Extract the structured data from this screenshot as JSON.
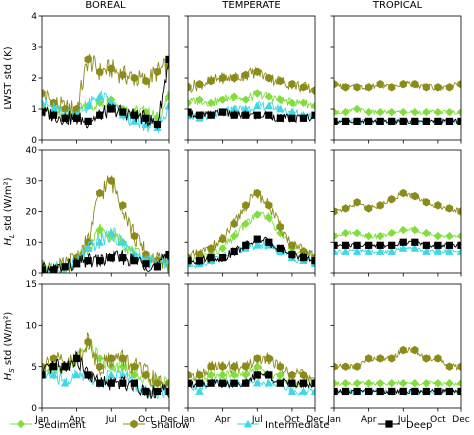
{
  "chart_data": {
    "type": "line",
    "columns": [
      "BOREAL",
      "TEMPERATE",
      "TROPICAL"
    ],
    "months": [
      "Jan",
      "Feb",
      "Mar",
      "Apr",
      "May",
      "Jun",
      "Jul",
      "Aug",
      "Sep",
      "Oct",
      "Nov",
      "Dec"
    ],
    "x_ticks": [
      "Jan",
      "Apr",
      "Jul",
      "Oct",
      "Dec"
    ],
    "x_tick_months": [
      1,
      4,
      7,
      10,
      12
    ],
    "colors": {
      "Sediment": "#7fdd3c",
      "Shallow": "#8b8b1a",
      "Intermediate": "#3fd7e6",
      "Deep": "#000000"
    },
    "rows": [
      {
        "ylabel_main": "LWST std (K)",
        "ylabel_sub": "",
        "ylabel_unit": "",
        "ylim": [
          0,
          4
        ],
        "yticks": [
          0,
          1,
          2,
          3,
          4
        ],
        "panels": [
          {
            "column": "BOREAL",
            "series": [
              {
                "name": "Sediment",
                "values": [
                  1.0,
                  0.9,
                  0.7,
                  0.9,
                  1.1,
                  1.2,
                  1.3,
                  1.0,
                  0.9,
                  0.9,
                  0.7,
                  1.4
                ]
              },
              {
                "name": "Shallow",
                "values": [
                  1.5,
                  1.2,
                  1.0,
                  1.0,
                  2.6,
                  2.2,
                  2.3,
                  2.1,
                  2.0,
                  1.9,
                  2.2,
                  2.4
                ]
              },
              {
                "name": "Intermediate",
                "values": [
                  1.2,
                  1.0,
                  0.8,
                  0.8,
                  1.1,
                  1.4,
                  1.2,
                  0.8,
                  0.6,
                  0.5,
                  0.4,
                  1.1
                ]
              },
              {
                "name": "Deep",
                "values": [
                  0.9,
                  0.8,
                  0.7,
                  0.7,
                  0.6,
                  0.8,
                  1.0,
                  0.9,
                  0.8,
                  0.7,
                  0.5,
                  2.6
                ]
              }
            ]
          },
          {
            "column": "TEMPERATE",
            "series": [
              {
                "name": "Sediment",
                "values": [
                  1.2,
                  1.3,
                  1.2,
                  1.3,
                  1.4,
                  1.3,
                  1.5,
                  1.4,
                  1.3,
                  1.2,
                  1.2,
                  1.1
                ]
              },
              {
                "name": "Shallow",
                "values": [
                  1.7,
                  1.8,
                  1.9,
                  2.0,
                  2.0,
                  2.1,
                  2.2,
                  2.0,
                  1.9,
                  1.8,
                  1.7,
                  1.6
                ]
              },
              {
                "name": "Intermediate",
                "values": [
                  0.8,
                  0.7,
                  0.8,
                  0.9,
                  1.0,
                  1.0,
                  1.1,
                  1.1,
                  1.0,
                  0.9,
                  0.8,
                  0.8
                ]
              },
              {
                "name": "Deep",
                "values": [
                  0.9,
                  0.8,
                  0.8,
                  0.9,
                  0.8,
                  0.8,
                  0.8,
                  0.8,
                  0.7,
                  0.7,
                  0.7,
                  0.8
                ]
              }
            ]
          },
          {
            "column": "TROPICAL",
            "series": [
              {
                "name": "Sediment",
                "values": [
                  0.9,
                  0.9,
                  1.0,
                  0.9,
                  0.9,
                  0.9,
                  0.9,
                  0.9,
                  0.9,
                  0.9,
                  0.9,
                  0.9
                ]
              },
              {
                "name": "Shallow",
                "values": [
                  1.8,
                  1.7,
                  1.7,
                  1.7,
                  1.8,
                  1.7,
                  1.8,
                  1.8,
                  1.7,
                  1.7,
                  1.7,
                  1.8
                ]
              },
              {
                "name": "Intermediate",
                "values": [
                  0.6,
                  0.6,
                  0.6,
                  0.6,
                  0.6,
                  0.6,
                  0.6,
                  0.6,
                  0.6,
                  0.6,
                  0.6,
                  0.6
                ]
              },
              {
                "name": "Deep",
                "values": [
                  0.6,
                  0.6,
                  0.6,
                  0.6,
                  0.6,
                  0.6,
                  0.6,
                  0.6,
                  0.6,
                  0.6,
                  0.6,
                  0.6
                ]
              }
            ]
          }
        ]
      },
      {
        "ylabel_main": "std (W/m²)",
        "ylabel_sub": "L",
        "ylabel_unit": "H",
        "ylim": [
          0,
          40
        ],
        "yticks": [
          0,
          10,
          20,
          30,
          40
        ],
        "panels": [
          {
            "column": "BOREAL",
            "series": [
              {
                "name": "Sediment",
                "values": [
                  1,
                  1,
                  2,
                  4,
                  8,
                  14,
                  12,
                  10,
                  6,
                  5,
                  4,
                  3
                ]
              },
              {
                "name": "Shallow",
                "values": [
                  1,
                  1,
                  2,
                  5,
                  10,
                  26,
                  30,
                  22,
                  12,
                  6,
                  4,
                  3
                ]
              },
              {
                "name": "Intermediate",
                "values": [
                  1,
                  1,
                  2,
                  3,
                  8,
                  10,
                  13,
                  10,
                  6,
                  4,
                  3,
                  4
                ]
              },
              {
                "name": "Deep",
                "values": [
                  1,
                  1,
                  2,
                  3,
                  4,
                  4,
                  5,
                  5,
                  4,
                  3,
                  2,
                  6
                ]
              }
            ]
          },
          {
            "column": "TEMPERATE",
            "series": [
              {
                "name": "Sediment",
                "values": [
                  4,
                  5,
                  6,
                  8,
                  12,
                  16,
                  19,
                  18,
                  13,
                  8,
                  6,
                  5
                ]
              },
              {
                "name": "Shallow",
                "values": [
                  5,
                  6,
                  8,
                  11,
                  16,
                  22,
                  26,
                  22,
                  15,
                  9,
                  7,
                  5
                ]
              },
              {
                "name": "Intermediate",
                "values": [
                  3,
                  3,
                  4,
                  5,
                  7,
                  8,
                  9,
                  9,
                  7,
                  5,
                  4,
                  3
                ]
              },
              {
                "name": "Deep",
                "values": [
                  4,
                  4,
                  5,
                  5,
                  7,
                  9,
                  11,
                  10,
                  8,
                  6,
                  5,
                  4
                ]
              }
            ]
          },
          {
            "column": "TROPICAL",
            "series": [
              {
                "name": "Sediment",
                "values": [
                  12,
                  13,
                  13,
                  12,
                  12,
                  13,
                  14,
                  14,
                  13,
                  12,
                  12,
                  12
                ]
              },
              {
                "name": "Shallow",
                "values": [
                  20,
                  21,
                  23,
                  21,
                  22,
                  24,
                  26,
                  25,
                  23,
                  22,
                  21,
                  20
                ]
              },
              {
                "name": "Intermediate",
                "values": [
                  7,
                  7,
                  7,
                  7,
                  7,
                  7,
                  8,
                  8,
                  7,
                  7,
                  7,
                  7
                ]
              },
              {
                "name": "Deep",
                "values": [
                  9,
                  9,
                  9,
                  9,
                  9,
                  9,
                  10,
                  10,
                  9,
                  9,
                  9,
                  9
                ]
              }
            ]
          }
        ]
      },
      {
        "ylabel_main": "std (W/m²)",
        "ylabel_sub": "S",
        "ylabel_unit": "H",
        "ylim": [
          0,
          15
        ],
        "yticks": [
          0,
          5,
          10,
          15
        ],
        "panels": [
          {
            "column": "BOREAL",
            "series": [
              {
                "name": "Sediment",
                "values": [
                  4,
                  5,
                  5,
                  6,
                  8,
                  6,
                  5,
                  5,
                  4,
                  4,
                  3,
                  3
                ]
              },
              {
                "name": "Shallow",
                "values": [
                  5,
                  6,
                  5,
                  6,
                  8,
                  5,
                  6,
                  6,
                  5,
                  4,
                  3,
                  3
                ]
              },
              {
                "name": "Intermediate",
                "values": [
                  4,
                  4,
                  3,
                  4,
                  4,
                  3,
                  4,
                  4,
                  3,
                  2,
                  2,
                  2
                ]
              },
              {
                "name": "Deep",
                "values": [
                  4,
                  5,
                  5,
                  6,
                  4,
                  3,
                  3,
                  3,
                  3,
                  2,
                  2,
                  2
                ]
              }
            ]
          },
          {
            "column": "TEMPERATE",
            "series": [
              {
                "name": "Sediment",
                "values": [
                  3,
                  3,
                  4,
                  4,
                  4,
                  4,
                  5,
                  4,
                  4,
                  3,
                  3,
                  3
                ]
              },
              {
                "name": "Shallow",
                "values": [
                  4,
                  4,
                  5,
                  5,
                  5,
                  5,
                  6,
                  6,
                  5,
                  4,
                  4,
                  3
                ]
              },
              {
                "name": "Intermediate",
                "values": [
                  3,
                  2,
                  3,
                  3,
                  3,
                  3,
                  3,
                  3,
                  3,
                  2,
                  2,
                  2
                ]
              },
              {
                "name": "Deep",
                "values": [
                  3,
                  3,
                  3,
                  3,
                  3,
                  3,
                  4,
                  4,
                  3,
                  3,
                  3,
                  3
                ]
              }
            ]
          },
          {
            "column": "TROPICAL",
            "series": [
              {
                "name": "Sediment",
                "values": [
                  3,
                  3,
                  3,
                  3,
                  3,
                  3,
                  3,
                  3,
                  3,
                  3,
                  3,
                  3
                ]
              },
              {
                "name": "Shallow",
                "values": [
                  5,
                  5,
                  5,
                  6,
                  6,
                  6,
                  7,
                  7,
                  6,
                  6,
                  5,
                  5
                ]
              },
              {
                "name": "Intermediate",
                "values": [
                  2,
                  2,
                  2,
                  2,
                  2,
                  2,
                  2,
                  2,
                  2,
                  2,
                  2,
                  2
                ]
              },
              {
                "name": "Deep",
                "values": [
                  2,
                  2,
                  2,
                  2,
                  2,
                  2,
                  2,
                  2,
                  2,
                  2,
                  2,
                  2
                ]
              }
            ]
          }
        ]
      }
    ],
    "legend": {
      "placement": "bottom",
      "entries": [
        {
          "name": "Sediment",
          "marker": "diamond"
        },
        {
          "name": "Shallow",
          "marker": "hexagon"
        },
        {
          "name": "Intermediate",
          "marker": "triangle"
        },
        {
          "name": "Deep",
          "marker": "square"
        }
      ]
    }
  }
}
